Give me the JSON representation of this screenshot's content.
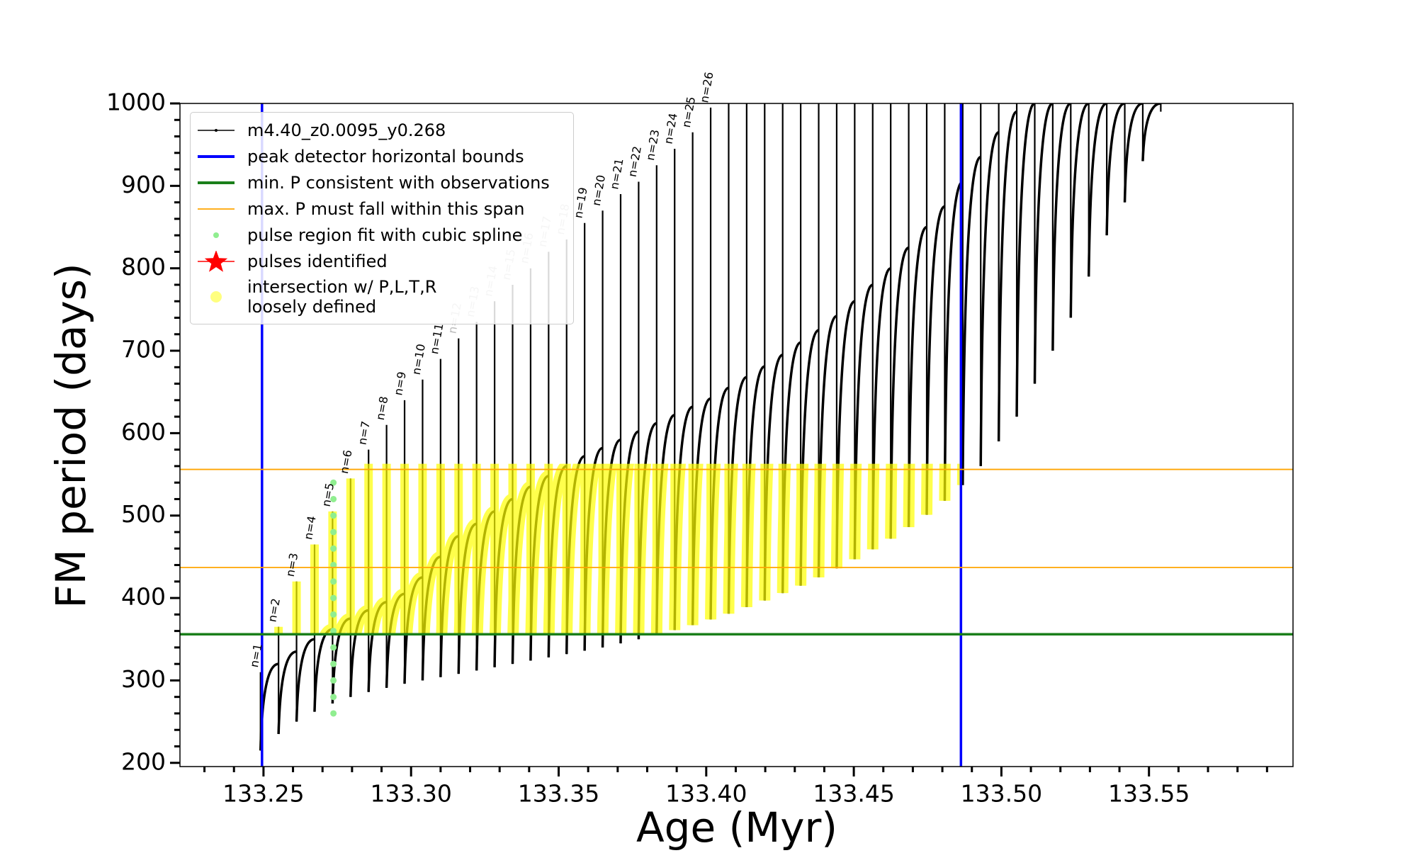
{
  "chart_data": {
    "type": "line",
    "xlabel": "Age (Myr)",
    "ylabel": "FM period (days)",
    "xlim": [
      133.2217,
      133.5988
    ],
    "ylim": [
      195.5,
      1000
    ],
    "xticks": [
      133.25,
      {
        "value": 133.3,
        "label": "133.30"
      },
      133.35,
      {
        "value": 133.4,
        "label": "133.40"
      },
      133.45,
      {
        "value": 133.5,
        "label": "133.50"
      },
      133.55
    ],
    "x_minor_ticks": [
      133.23,
      133.24,
      133.26,
      133.27,
      133.28,
      133.29,
      133.31,
      133.32,
      133.33,
      133.34,
      133.36,
      133.37,
      133.38,
      133.39,
      133.41,
      133.42,
      133.43,
      133.44,
      133.46,
      133.47,
      133.48,
      133.49,
      133.51,
      133.52,
      133.53,
      133.54,
      133.56,
      133.57,
      133.58,
      133.59
    ],
    "yticks": [
      200,
      300,
      400,
      500,
      600,
      700,
      800,
      900,
      1000
    ],
    "y_minor_ticks": [
      220,
      240,
      260,
      280,
      320,
      340,
      360,
      380,
      420,
      440,
      460,
      480,
      520,
      540,
      560,
      580,
      620,
      640,
      660,
      680,
      720,
      740,
      760,
      780,
      820,
      840,
      860,
      880,
      920,
      940,
      960,
      980
    ],
    "legend": "upper left",
    "series": [
      {
        "name": "m4.40_z0.0095_y0.268",
        "color": "#000000",
        "x": [
          133.249,
          133.2551,
          133.2612,
          133.2673,
          133.2734,
          133.2795,
          133.2856,
          133.2917,
          133.2978,
          133.3039,
          133.31,
          133.3161,
          133.3222,
          133.3283,
          133.3344,
          133.3405,
          133.3466,
          133.3527,
          133.3588,
          133.3649,
          133.371,
          133.3771,
          133.3832,
          133.3893,
          133.3954,
          133.4015,
          133.4076,
          133.4137,
          133.4198,
          133.4259,
          133.432,
          133.4381,
          133.4442,
          133.4503,
          133.4564,
          133.4625,
          133.4686,
          133.4747,
          133.4808,
          133.4869,
          133.493,
          133.4991,
          133.5052,
          133.5113,
          133.5174,
          133.5235,
          133.5296,
          133.5357,
          133.5418,
          133.5479,
          133.554
        ],
        "peak": [
          310,
          365,
          420,
          465,
          505,
          545,
          580,
          610,
          640,
          665,
          690,
          715,
          735,
          760,
          780,
          800,
          820,
          835,
          855,
          870,
          890,
          905,
          925,
          945,
          965,
          995,
          1000,
          1000,
          1000,
          1000,
          1000,
          1000,
          1000,
          1000,
          1000,
          1000,
          1000,
          1000,
          1000,
          1000,
          1000,
          1000,
          1000,
          1000,
          1000,
          1000,
          1000,
          1000,
          1000,
          1000,
          1000
        ],
        "quiescent": [
          305,
          320,
          335,
          350,
          362,
          375,
          385,
          395,
          405,
          425,
          450,
          475,
          490,
          505,
          520,
          535,
          548,
          560,
          572,
          582,
          592,
          602,
          612,
          622,
          632,
          642,
          655,
          668,
          681,
          695,
          710,
          725,
          742,
          760,
          780,
          800,
          825,
          850,
          875,
          905,
          935,
          965,
          990,
          1000,
          1000,
          1000,
          1000,
          1000,
          1000,
          1000,
          1000
        ],
        "trough": [
          215,
          235,
          250,
          262,
          272,
          280,
          286,
          291,
          296,
          300,
          304,
          308,
          312,
          316,
          320,
          324,
          328,
          332,
          336,
          340,
          345,
          350,
          355,
          361,
          367,
          374,
          381,
          389,
          397,
          406,
          415,
          425,
          436,
          447,
          459,
          472,
          486,
          501,
          518,
          537,
          560,
          590,
          620,
          660,
          700,
          740,
          790,
          840,
          880,
          930,
          990
        ]
      }
    ],
    "vlines": {
      "name": "peak detector horizontal bounds",
      "color": "#0000ff",
      "values": [
        133.2495,
        133.4863
      ]
    },
    "min_period": {
      "name": "min. P consistent with observations",
      "color": "#1a7f1a",
      "value": 356
    },
    "max_period": {
      "name": "max. P must fall within this span",
      "color": "#ffa500",
      "values": [
        437,
        556
      ]
    },
    "spline": {
      "name": "pulse region fit with cubic spline",
      "color": "#90ee90",
      "x": 133.2737,
      "values": [
        260,
        280,
        300,
        320,
        340,
        360,
        380,
        400,
        420,
        440,
        460,
        480,
        500,
        520,
        540
      ]
    },
    "pulses_identified": {
      "name": "pulses identified",
      "color": "#ff0000"
    },
    "intersection": {
      "name": "intersection w/ P,L,T,R\nloosely defined",
      "color": "#ffff00"
    },
    "annotations": [
      "n=1",
      "n=2",
      "n=3",
      "n=4",
      "n=5",
      "n=6",
      "n=7",
      "n=8",
      "n=9",
      "n=10",
      "n=11",
      "n=12",
      "n=13",
      "n=14",
      "n=15",
      "n=16",
      "n=17",
      "n=18",
      "n=19",
      "n=20",
      "n=21",
      "n=22",
      "n=23",
      "n=24",
      "n=25",
      "n=26"
    ]
  }
}
